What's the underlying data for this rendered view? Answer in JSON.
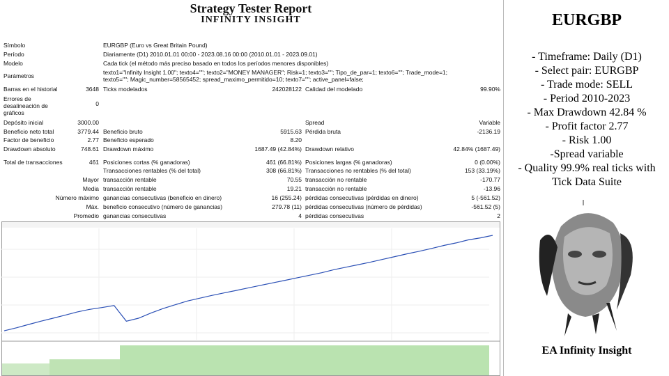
{
  "header": {
    "title": "Strategy Tester Report",
    "subtitle": "INFINITY INSIGHT"
  },
  "info": [
    [
      "Símbolo",
      "EURGBP (Euro vs Great Britain Pound)"
    ],
    [
      "Período",
      "Diariamente (D1) 2010.01.01 00:00 - 2023.08.16 00:00 (2010.01.01 - 2023.09.01)"
    ],
    [
      "Modelo",
      "Cada tick (el método más preciso basado en todos los períodos menores disponibles)"
    ],
    [
      "Parámetros",
      "texto1=\"Infinity Insight 1.00\"; texto4=\"\"; texto2=\"MONEY MANAGER\"; Risk=1; texto3=\"\"; Tipo_de_par=1; texto6=\"\"; Trade_mode=1;",
      "texto5=\"\"; Magic_number=58565452; spread_maximo_permitido=10; texto7=\"\"; active_panel=false;"
    ]
  ],
  "stats": [
    [
      "Barras en el historial",
      "3648",
      "Ticks modelados",
      "242028122",
      "Calidad del modelado",
      "99.90%"
    ],
    [
      "Errores de desalineación de gráficos",
      "0",
      null,
      null,
      null,
      null
    ],
    [
      "Depósito inicial",
      "3000.00",
      null,
      null,
      "Spread",
      "Variable"
    ],
    [
      "Beneficio neto total",
      "3779.44",
      "Beneficio bruto",
      "5915.63",
      "Pérdida bruta",
      "-2136.19"
    ],
    [
      "Factor de beneficio",
      "2.77",
      "Beneficio esperado",
      "8.20",
      null,
      null
    ],
    [
      "Drawdown absoluto",
      "748.61",
      "Drawdown máximo",
      "1687.49 (42.84%)",
      "Drawdown relativo",
      "42.84% (1687.49)"
    ],
    [
      "Total de transacciones",
      "461",
      "Posiciones cortas (% ganadoras)",
      "461 (66.81%)",
      "Posiciones largas (% ganadoras)",
      "0 (0.00%)"
    ],
    [
      null,
      null,
      "Transacciones rentables (% del total)",
      "308 (66.81%)",
      "Transacciones no rentables (% del total)",
      "153 (33.19%)"
    ],
    [
      "Mayor",
      null,
      "transacción rentable",
      "70.55",
      "transacción no rentable",
      "-170.77"
    ],
    [
      "Media",
      null,
      "transacción rentable",
      "19.21",
      "transacción no rentable",
      "-13.96"
    ],
    [
      "Número máximo",
      null,
      "ganancias consecutivas (beneficio en dinero)",
      "16 (255.24)",
      "pérdidas consecutivas (pérdidas en dinero)",
      "5 (-561.52)"
    ],
    [
      "Máx.",
      null,
      "beneficio consecutivo (número de ganancias)",
      "279.78 (11)",
      "pérdidas consecutivas (número de pérdidas)",
      "-561.52 (5)"
    ],
    [
      "Promedio",
      null,
      "ganancias consecutivas",
      "4",
      "pérdidas consecutivas",
      "2"
    ]
  ],
  "graph": {
    "balance": [
      3000,
      3120,
      3250,
      3380,
      3500,
      3620,
      3750,
      3850,
      3920,
      4000,
      3380,
      3500,
      3700,
      3880,
      4030,
      4180,
      4290,
      4400,
      4500,
      4600,
      4700,
      4800,
      4900,
      5000,
      5100,
      5200,
      5300,
      5420,
      5520,
      5620,
      5720,
      5830,
      5940,
      6050,
      6150,
      6260,
      6380,
      6480,
      6600,
      6680,
      6779
    ],
    "ylim": [
      2700,
      7000
    ]
  },
  "side": {
    "title": "EURGBP",
    "lines": [
      "- Timeframe: Daily (D1)",
      "- Select pair: EURGBP",
      "- Trade mode: SELL",
      "- Period 2010-2023",
      "- Max Drawdown 42.84 %",
      "- Profit factor 2.77",
      "- Risk 1.00",
      "-Spread variable",
      "- Quality 99.9% real ticks with",
      "Tick Data Suite"
    ],
    "footer": "EA Infinity Insight"
  }
}
